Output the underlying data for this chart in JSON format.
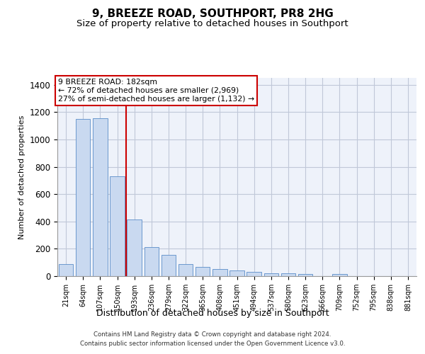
{
  "title": "9, BREEZE ROAD, SOUTHPORT, PR8 2HG",
  "subtitle": "Size of property relative to detached houses in Southport",
  "xlabel": "Distribution of detached houses by size in Southport",
  "ylabel": "Number of detached properties",
  "categories": [
    "21sqm",
    "64sqm",
    "107sqm",
    "150sqm",
    "193sqm",
    "236sqm",
    "279sqm",
    "322sqm",
    "365sqm",
    "408sqm",
    "451sqm",
    "494sqm",
    "537sqm",
    "580sqm",
    "623sqm",
    "666sqm",
    "709sqm",
    "752sqm",
    "795sqm",
    "838sqm",
    "881sqm"
  ],
  "values": [
    90,
    1150,
    1155,
    730,
    415,
    210,
    155,
    90,
    65,
    50,
    40,
    30,
    20,
    22,
    18,
    0,
    15,
    0,
    0,
    0,
    0
  ],
  "bar_color": "#c9d9f0",
  "bar_edge_color": "#5b8dc8",
  "grid_color": "#c0c8d8",
  "vline_color": "#cc0000",
  "annotation_text": "9 BREEZE ROAD: 182sqm\n← 72% of detached houses are smaller (2,969)\n27% of semi-detached houses are larger (1,132) →",
  "annotation_box_color": "#ffffff",
  "annotation_box_edge": "#cc0000",
  "footer1": "Contains HM Land Registry data © Crown copyright and database right 2024.",
  "footer2": "Contains public sector information licensed under the Open Government Licence v3.0.",
  "ylim": [
    0,
    1450
  ],
  "yticks": [
    0,
    200,
    400,
    600,
    800,
    1000,
    1200,
    1400
  ],
  "bg_color": "#eef2fa",
  "fig_bg": "#ffffff",
  "title_fontsize": 11,
  "subtitle_fontsize": 9.5
}
